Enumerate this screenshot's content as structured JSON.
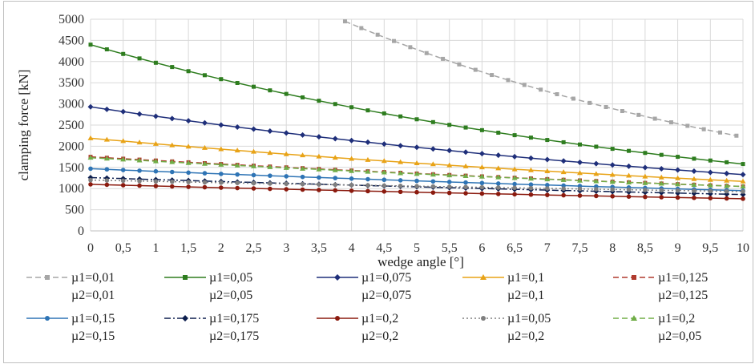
{
  "chart_data": {
    "type": "line",
    "title": "",
    "xlabel": "wedge angle [°]",
    "ylabel": "clamping force [kN]",
    "xlim": [
      0,
      10
    ],
    "ylim": [
      0,
      5000
    ],
    "x_ticks": [
      "0",
      "0,5",
      "1",
      "1,5",
      "2",
      "2,5",
      "3",
      "3,5",
      "4",
      "4,5",
      "5",
      "5,5",
      "6",
      "6,5",
      "7",
      "7,5",
      "8",
      "8,5",
      "9",
      "9,5",
      "10"
    ],
    "y_ticks": [
      "0",
      "500",
      "1000",
      "1500",
      "2000",
      "2500",
      "3000",
      "3500",
      "4000",
      "4500",
      "5000"
    ],
    "grid": true,
    "legend_position": "bottom",
    "x_step": 0.25,
    "series": [
      {
        "name_line1": "µ1=0,01",
        "name_line2": "µ2=0,01",
        "color": "#a6a6a6",
        "marker": "square",
        "dash": "dash",
        "start": 4,
        "end": 2220
      },
      {
        "name_line1": "µ1=0,05",
        "name_line2": "µ2=0,05",
        "color": "#2e7d1f",
        "marker": "square",
        "dash": "solid",
        "start": 4400,
        "end": 1580
      },
      {
        "name_line1": "µ1=0,075",
        "name_line2": "µ2=0,075",
        "color": "#1f2f7a",
        "marker": "diamond",
        "dash": "solid",
        "start": 2930,
        "end": 1330
      },
      {
        "name_line1": "µ1=0,1",
        "name_line2": "µ2=0,1",
        "color": "#e8a317",
        "marker": "triangle",
        "dash": "solid",
        "start": 2190,
        "end": 1170
      },
      {
        "name_line1": "µ1=0,125",
        "name_line2": "µ2=0,125",
        "color": "#b03a2e",
        "marker": "square",
        "dash": "dash",
        "start": 1750,
        "end": 1050
      },
      {
        "name_line1": "µ1=0,15",
        "name_line2": "µ2=0,15",
        "color": "#2e74b5",
        "marker": "circle",
        "dash": "solid",
        "start": 1470,
        "end": 950
      },
      {
        "name_line1": "µ1=0,175",
        "name_line2": "µ2=0,175",
        "color": "#0d1f4f",
        "marker": "diamond",
        "dash": "dashdot",
        "start": 1260,
        "end": 860
      },
      {
        "name_line1": "µ1=0,2",
        "name_line2": "µ2=0,2",
        "color": "#8b1a0e",
        "marker": "circle",
        "dash": "solid",
        "start": 1100,
        "end": 760
      },
      {
        "name_line1": "µ1=0,05",
        "name_line2": "µ2=0,2",
        "color": "#7f7f7f",
        "marker": "circle",
        "dash": "dot",
        "start": 1200,
        "end": 930
      },
      {
        "name_line1": "µ1=0,2",
        "name_line2": "µ2=0,05",
        "color": "#70ad47",
        "marker": "triangle",
        "dash": "dash",
        "start": 1730,
        "end": 1050
      }
    ]
  }
}
